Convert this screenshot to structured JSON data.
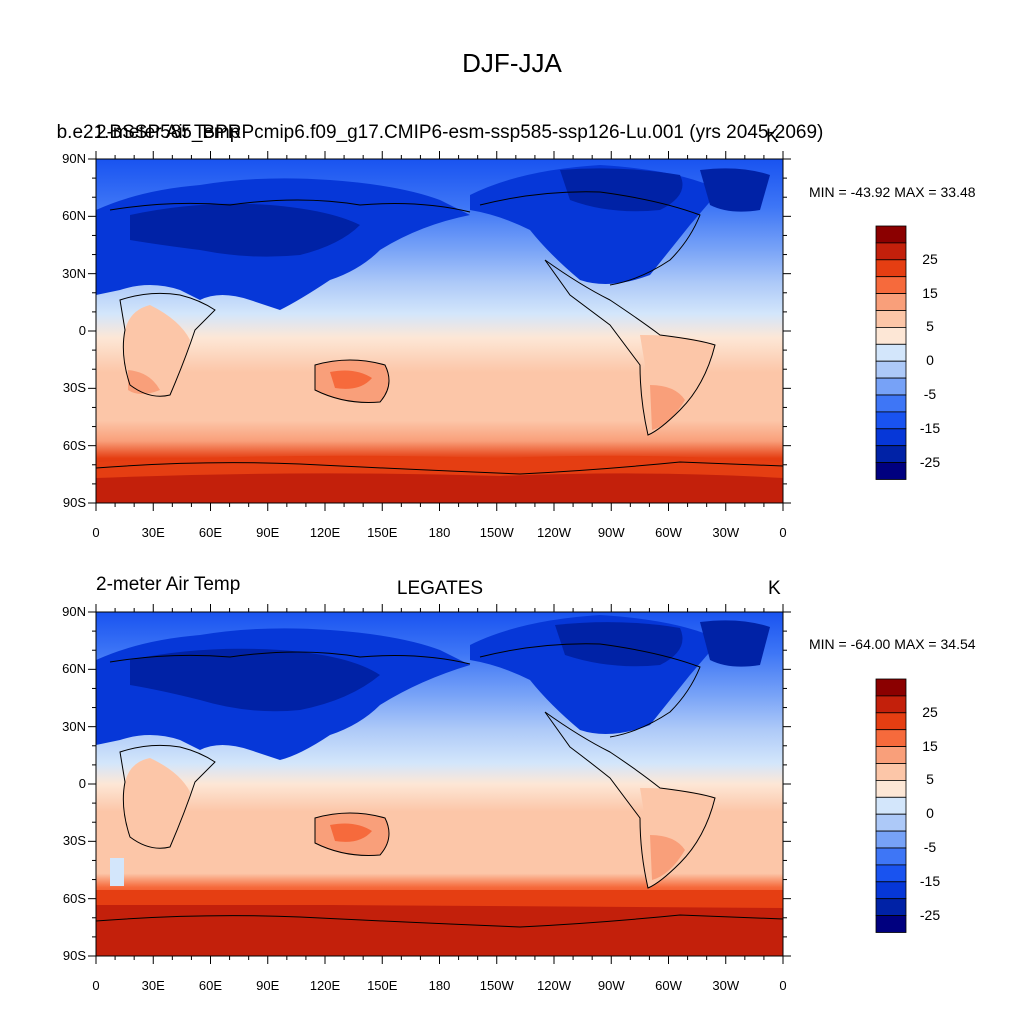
{
  "title": "DJF-JJA",
  "colormap": {
    "bin_edges": [
      -30,
      -25,
      -20,
      -15,
      -10,
      -5,
      -1,
      0,
      1,
      5,
      10,
      15,
      20,
      25,
      30
    ],
    "colors": [
      "#00007f",
      "#0022a6",
      "#0637d8",
      "#1953f0",
      "#3e76f6",
      "#77a2f7",
      "#adc9f8",
      "#d3e6fb",
      "#fde7d6",
      "#fcc6a8",
      "#f99f7a",
      "#f66a3c",
      "#e53e12",
      "#c3200b",
      "#8b0000"
    ],
    "label_values": [
      "25",
      "15",
      "5",
      "0",
      "-5",
      "-15",
      "-25"
    ]
  },
  "panels": [
    {
      "id": "top",
      "left_label": "2-meter Air Temp",
      "center_label": "b.e21.BSSP585_BPRPcmip6.f09_g17.CMIP6-esm-ssp585-ssp126-Lu.001 (yrs 2045-2069)",
      "right_label": "K",
      "min_max": "MIN = -43.92 MAX =  33.48",
      "lat_labels": [
        "90N",
        "60N",
        "30N",
        "0",
        "30S",
        "60S",
        "90S"
      ],
      "lon_labels": [
        "0",
        "30E",
        "60E",
        "90E",
        "120E",
        "150E",
        "180",
        "150W",
        "120W",
        "90W",
        "60W",
        "30W",
        "0"
      ]
    },
    {
      "id": "bottom",
      "left_label": "2-meter Air Temp",
      "center_label": "LEGATES",
      "right_label": "K",
      "min_max": "MIN = -64.00 MAX =  34.54",
      "lat_labels": [
        "90N",
        "60N",
        "30N",
        "0",
        "30S",
        "60S",
        "90S"
      ],
      "lon_labels": [
        "0",
        "30E",
        "60E",
        "90E",
        "120E",
        "150E",
        "180",
        "150W",
        "120W",
        "90W",
        "60W",
        "30W",
        "0"
      ]
    }
  ]
}
